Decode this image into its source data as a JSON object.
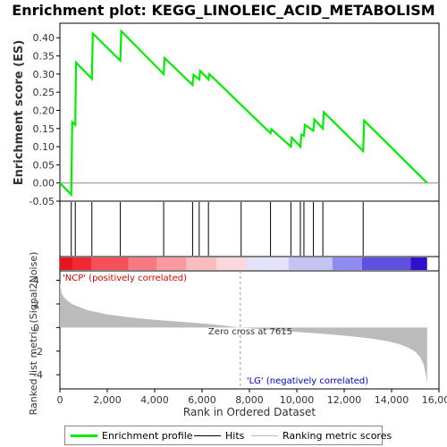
{
  "chart_data": {
    "type": "line",
    "title": "Enrichment plot: KEGG_LINOLEIC_ACID_METABOLISM",
    "es_panel": {
      "ylabel": "Enrichment score (ES)",
      "ylim": [
        -0.05,
        0.44
      ],
      "yticks": [
        "0.40",
        "0.35",
        "0.30",
        "0.25",
        "0.20",
        "0.15",
        "0.10",
        "0.05",
        "0.00",
        "-0.05"
      ],
      "ytick_values": [
        0.4,
        0.35,
        0.3,
        0.25,
        0.2,
        0.15,
        0.1,
        0.05,
        0.0,
        -0.05
      ],
      "series_name": "Enrichment profile",
      "line_color": "#00ee00",
      "x": [
        0,
        480,
        520,
        650,
        680,
        1350,
        1390,
        2550,
        2590,
        4380,
        4420,
        5600,
        5640,
        5880,
        5920,
        6270,
        6310,
        8890,
        8930,
        9750,
        9790,
        10150,
        10190,
        10300,
        10340,
        10700,
        10740,
        11100,
        11140,
        12800,
        12840,
        15500
      ],
      "y": [
        0.0,
        -0.032,
        0.168,
        0.16,
        0.332,
        0.287,
        0.412,
        0.337,
        0.418,
        0.3,
        0.344,
        0.27,
        0.298,
        0.285,
        0.309,
        0.285,
        0.3,
        0.137,
        0.148,
        0.1,
        0.125,
        0.1,
        0.133,
        0.13,
        0.16,
        0.144,
        0.175,
        0.15,
        0.195,
        0.088,
        0.172,
        0.0
      ]
    },
    "hits": {
      "series_name": "Hits",
      "positions": [
        480,
        650,
        1350,
        2550,
        4380,
        5600,
        5880,
        6270,
        7650,
        8890,
        9750,
        10150,
        10300,
        10700,
        11100,
        12800
      ]
    },
    "ranked_panel": {
      "ylabel": "Ranked list metric (Signal2Noise)",
      "series_name": "Ranking metric scores",
      "ylim": [
        -5.2,
        4.8
      ],
      "yticks": [
        "4",
        "2",
        "0",
        "-2",
        "-4"
      ],
      "ytick_values": [
        4,
        2,
        0,
        -2,
        -4
      ],
      "rank": [
        0,
        30,
        80,
        150,
        300,
        500,
        800,
        1200,
        2000,
        3000,
        4000,
        5000,
        6000,
        6800,
        7615,
        8500,
        9500,
        10500,
        11500,
        12500,
        13200,
        13800,
        14300,
        14700,
        15000,
        15200,
        15350,
        15450,
        15500
      ],
      "metric": [
        3.9,
        3.3,
        2.9,
        2.6,
        2.3,
        2.0,
        1.75,
        1.45,
        1.1,
        0.85,
        0.65,
        0.5,
        0.35,
        0.2,
        0.0,
        -0.15,
        -0.3,
        -0.45,
        -0.6,
        -0.78,
        -0.95,
        -1.15,
        -1.4,
        -1.7,
        -2.05,
        -2.5,
        -3.1,
        -4.0,
        -4.75
      ],
      "fill_color": "#bbbbbb",
      "positive_label": "'NCP' (positively correlated)",
      "negative_label": "'LG' (negatively correlated)",
      "positive_color": "#dd0000",
      "negative_color": "#0000cc",
      "zero_cross_label": "Zero cross at 7615",
      "zero_cross": 7615
    },
    "xaxis": {
      "label": "Rank in Ordered Dataset",
      "xlim": [
        0,
        16000
      ],
      "ticks": [
        "0",
        "2,000",
        "4,000",
        "6,000",
        "8,000",
        "10,000",
        "12,000",
        "14,000",
        "16,000"
      ],
      "tick_values": [
        0,
        2000,
        4000,
        6000,
        8000,
        10000,
        12000,
        14000,
        16000
      ],
      "n_genes": 15500
    },
    "color_bar": [
      {
        "from": 0,
        "to": 550,
        "color": "#e8141e"
      },
      {
        "from": 550,
        "to": 1350,
        "color": "#ee2a34"
      },
      {
        "from": 1350,
        "to": 2900,
        "color": "#f5505a"
      },
      {
        "from": 2900,
        "to": 4100,
        "color": "#f87a80"
      },
      {
        "from": 4100,
        "to": 5350,
        "color": "#fa9aa0"
      },
      {
        "from": 5350,
        "to": 6600,
        "color": "#fbbcc0"
      },
      {
        "from": 6600,
        "to": 7850,
        "color": "#fcd8dc"
      },
      {
        "from": 7850,
        "to": 9650,
        "color": "#e4e2f8"
      },
      {
        "from": 9650,
        "to": 11500,
        "color": "#c6c4f4"
      },
      {
        "from": 11500,
        "to": 12750,
        "color": "#8e8cee"
      },
      {
        "from": 12750,
        "to": 14800,
        "color": "#6050e0"
      },
      {
        "from": 14800,
        "to": 15500,
        "color": "#3010c8"
      }
    ],
    "legend": [
      {
        "label": "Enrichment profile",
        "color": "#00ee00",
        "style": "thick"
      },
      {
        "label": "Hits",
        "color": "#000000",
        "style": "thin"
      },
      {
        "label": "Ranking metric scores",
        "color": "#bbbbbb",
        "style": "thin"
      }
    ]
  }
}
